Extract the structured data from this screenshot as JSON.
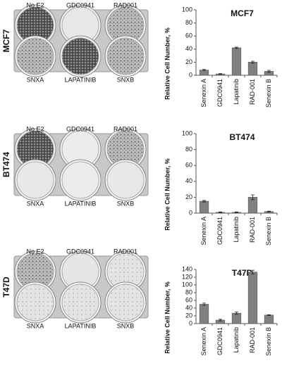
{
  "chart_data": [
    {
      "type": "bar",
      "title": "MCF7",
      "y_label": "Relative Cell Number, %",
      "categories": [
        "Senexin A",
        "GDC0941",
        "Lapatinib",
        "RAD-001",
        "Senexin B"
      ],
      "values": [
        8,
        2,
        42,
        20,
        6
      ],
      "errors": [
        1,
        0.5,
        1,
        1.5,
        1.5
      ],
      "color": "#808080",
      "ylim": [
        0,
        100
      ],
      "yticks": [
        0,
        20,
        40,
        60,
        80,
        100
      ]
    },
    {
      "type": "bar",
      "title": "BT474",
      "y_label": "Relative Cell Number, %",
      "categories": [
        "Senexin A",
        "GDC0941",
        "Lapatinib",
        "RAD-001",
        "Senexin B"
      ],
      "values": [
        15,
        1,
        1,
        20,
        2
      ],
      "errors": [
        1,
        0.5,
        0.5,
        3,
        0.5
      ],
      "color": "#808080",
      "ylim": [
        0,
        100
      ],
      "yticks": [
        0,
        20,
        40,
        60,
        80,
        100
      ]
    },
    {
      "type": "bar",
      "title": "T47D",
      "y_label": "Relative Cell Number, %",
      "categories": [
        "Senexin A",
        "GDC0941",
        "Lapatinib",
        "RAD-001",
        "Senexin B"
      ],
      "values": [
        50,
        9,
        27,
        133,
        22
      ],
      "errors": [
        3,
        2,
        3,
        5,
        1
      ],
      "color": "#808080",
      "ylim": [
        0,
        140
      ],
      "yticks": [
        0,
        20,
        40,
        60,
        80,
        100,
        120,
        140
      ]
    }
  ],
  "plates": [
    {
      "cell_line": "MCF7",
      "top": [
        "No E2",
        "GDC0941",
        "RAD001"
      ],
      "bottom": [
        "SNXA",
        "LAPATINIB",
        "SNXB"
      ]
    },
    {
      "cell_line": "BT474",
      "top": [
        "No E2",
        "GDC0941",
        "RAD001"
      ],
      "bottom": [
        "SNXA",
        "LAPATINIB",
        "SNXB"
      ]
    },
    {
      "cell_line": "T47D",
      "top": [
        "No E2",
        "GDC0941",
        "RAD001"
      ],
      "bottom": [
        "SNXA",
        "LAPATINIB",
        "SNXB"
      ]
    }
  ]
}
